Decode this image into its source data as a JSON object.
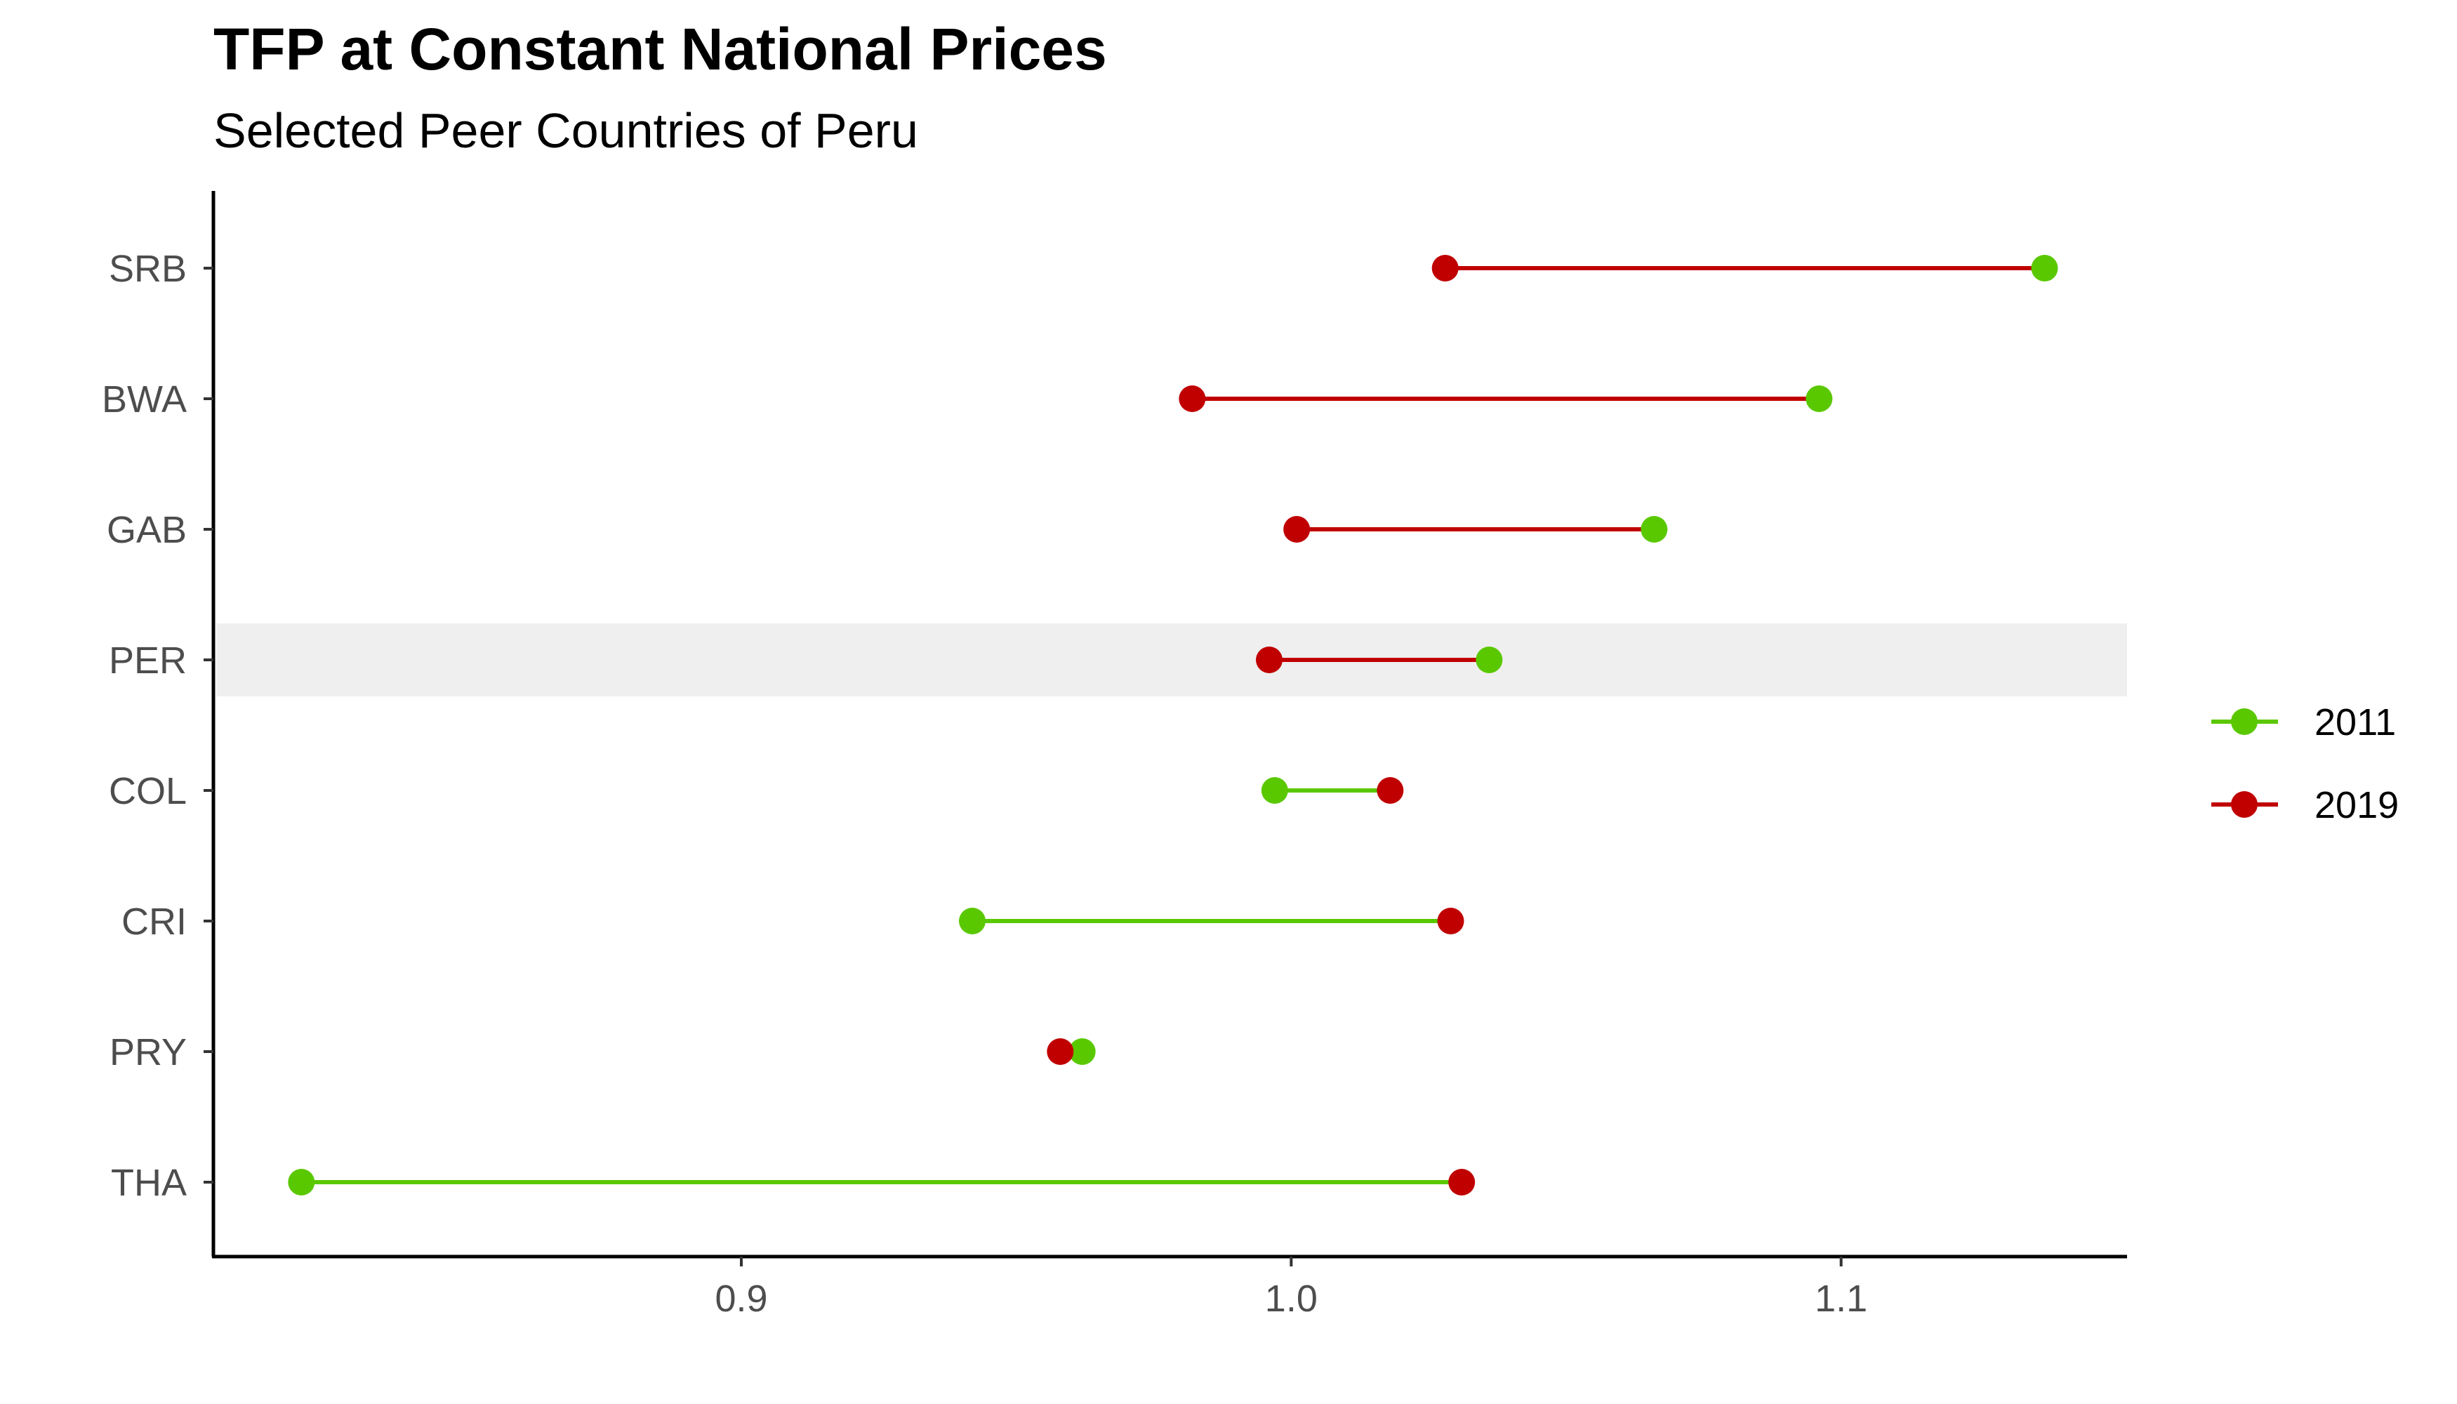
{
  "chart_data": {
    "type": "dumbbell",
    "title": "TFP at Constant National Prices",
    "subtitle": "Selected Peer Countries of Peru",
    "xlabel": "",
    "ylabel": "",
    "xlim": [
      0.804,
      1.152
    ],
    "x_ticks": [
      {
        "value": 0.9,
        "label": "0.9"
      },
      {
        "value": 1.0,
        "label": "1.0"
      },
      {
        "value": 1.1,
        "label": "1.1"
      }
    ],
    "grid": false,
    "highlight_category": "PER",
    "legend_position": "right",
    "categories": [
      "SRB",
      "BWA",
      "GAB",
      "PER",
      "COL",
      "CRI",
      "PRY",
      "THA"
    ],
    "series": [
      {
        "name": "2011",
        "color": "#5AC800",
        "values": [
          1.137,
          1.096,
          1.066,
          1.036,
          0.997,
          0.942,
          0.962,
          0.82
        ]
      },
      {
        "name": "2019",
        "color": "#C00000",
        "values": [
          1.028,
          0.982,
          1.001,
          0.996,
          1.018,
          1.029,
          0.958,
          1.031
        ]
      }
    ]
  }
}
